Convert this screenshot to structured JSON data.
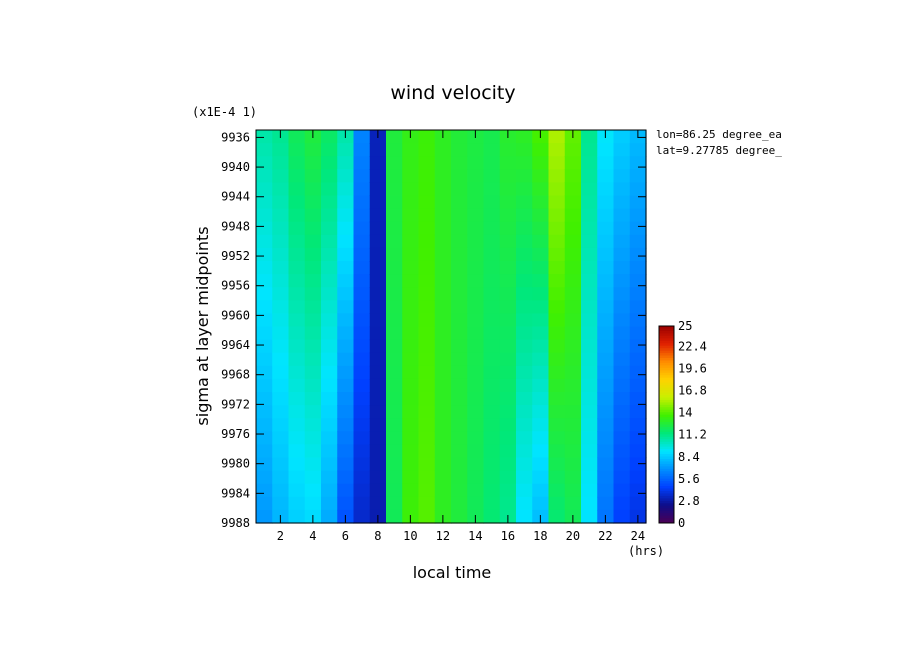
{
  "chart_data": {
    "type": "heatmap",
    "title": "wind velocity",
    "xlabel": "local time",
    "x_unit": "(hrs)",
    "ylabel": "sigma at layer midpoints",
    "y_scale_note": "(x1E-4 1)",
    "annotations": [
      "lon=86.25 degree_ea",
      "lat=9.27785 degree_"
    ],
    "x": [
      1,
      2,
      3,
      4,
      5,
      6,
      7,
      8,
      9,
      10,
      11,
      12,
      13,
      14,
      15,
      16,
      17,
      18,
      19,
      20,
      21,
      22,
      23,
      24
    ],
    "xlim": [
      0.5,
      24.5
    ],
    "x_ticks": [
      "2",
      "4",
      "6",
      "8",
      "10",
      "12",
      "14",
      "16",
      "18",
      "20",
      "22",
      "24"
    ],
    "y": [
      9935,
      9988
    ],
    "ylim": [
      9935,
      9988
    ],
    "y_ticks": [
      "9936",
      "9940",
      "9944",
      "9948",
      "9952",
      "9956",
      "9960",
      "9964",
      "9968",
      "9972",
      "9976",
      "9980",
      "9984",
      "9988"
    ],
    "top_values": [
      10.6,
      11.0,
      12.0,
      12.5,
      11.8,
      10.6,
      6.5,
      3.2,
      12.5,
      13.2,
      13.5,
      13.0,
      12.6,
      12.4,
      12.2,
      12.8,
      13.0,
      13.8,
      15.5,
      14.2,
      11.0,
      9.2,
      8.5,
      8.0
    ],
    "bottom_values": [
      7.0,
      7.8,
      8.5,
      8.8,
      7.5,
      5.0,
      3.5,
      3.0,
      12.0,
      13.5,
      14.0,
      13.0,
      12.5,
      12.0,
      11.5,
      11.0,
      9.0,
      8.0,
      11.5,
      12.0,
      9.0,
      6.0,
      4.5,
      4.0
    ],
    "colorbar": {
      "min": 0,
      "max": 25,
      "tick_labels": [
        "25",
        "22.4",
        "19.6",
        "16.8",
        "14",
        "11.2",
        "8.4",
        "5.6",
        "2.8",
        "0"
      ],
      "colors": [
        "#4b0055",
        "#0d0d8a",
        "#0040ff",
        "#0090ff",
        "#00e5ff",
        "#00e87a",
        "#40f000",
        "#c8f000",
        "#ffd200",
        "#ff8c00",
        "#e02000",
        "#9a0000"
      ]
    },
    "grid": false,
    "legend": "colorbar-right"
  }
}
